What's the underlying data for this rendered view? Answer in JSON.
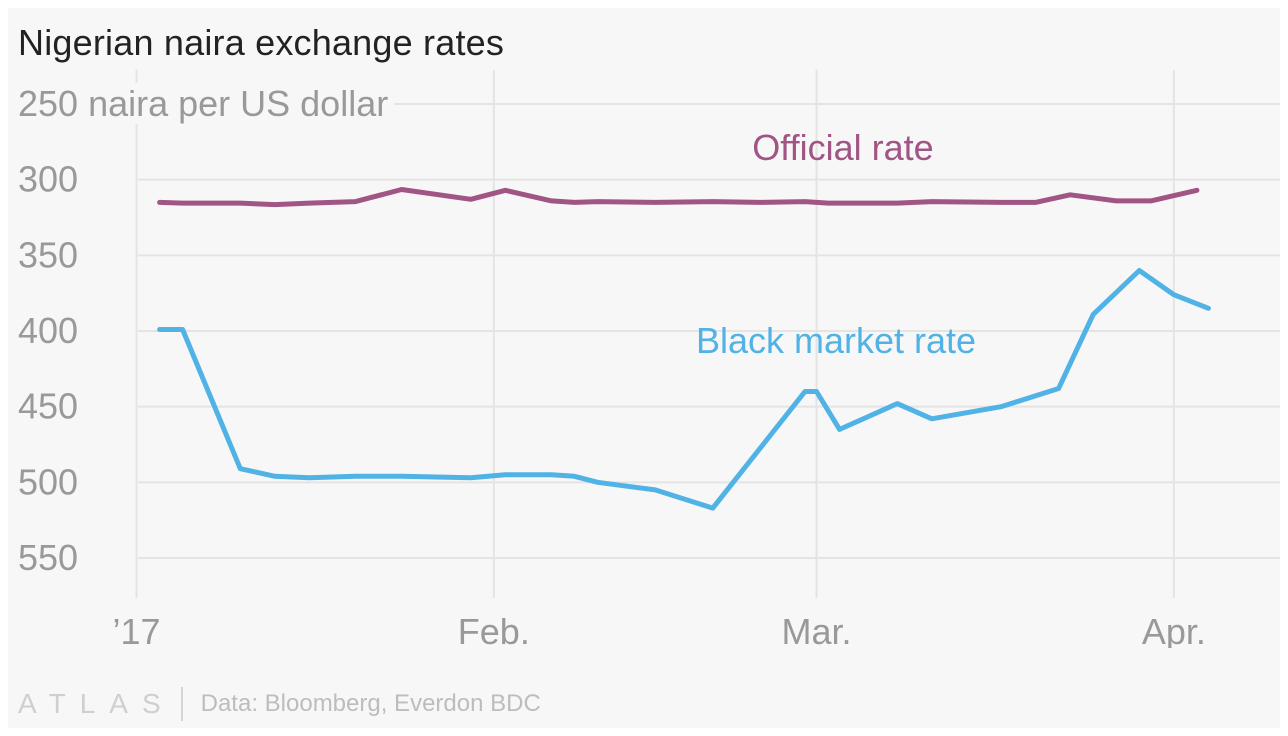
{
  "title": "Nigerian naira exchange rates",
  "footer": {
    "logo": "ATLAS",
    "source": "Data: Bloomberg, Everdon BDC"
  },
  "colors": {
    "official": "#a05584",
    "black_market": "#51b2e5",
    "grid": "#e4e4e4",
    "tick_text": "#999999"
  },
  "chart_data": {
    "type": "line",
    "title": "Nigerian naira exchange rates",
    "ylabel": "naira per US dollar",
    "ylim": [
      250,
      550
    ],
    "y_inverted": true,
    "yticks": [
      250,
      300,
      350,
      400,
      450,
      500,
      550
    ],
    "ytick_labels": [
      "250 naira per US dollar",
      "300",
      "350",
      "400",
      "450",
      "500",
      "550"
    ],
    "xlim": [
      "2016-12-31",
      "2017-04-07"
    ],
    "xticks": [
      "2017-01-01",
      "2017-02-01",
      "2017-03-01",
      "2017-04-01"
    ],
    "xtick_labels": [
      "’17",
      "Feb.",
      "Mar.",
      "Apr."
    ],
    "grid": true,
    "series": [
      {
        "name": "Official rate",
        "color": "#a05584",
        "points": [
          [
            "2017-01-03",
            315
          ],
          [
            "2017-01-05",
            315.5
          ],
          [
            "2017-01-10",
            315.5
          ],
          [
            "2017-01-13",
            316.5
          ],
          [
            "2017-01-16",
            315.5
          ],
          [
            "2017-01-20",
            314.5
          ],
          [
            "2017-01-24",
            306.5
          ],
          [
            "2017-01-30",
            313
          ],
          [
            "2017-02-02",
            307
          ],
          [
            "2017-02-06",
            314
          ],
          [
            "2017-02-08",
            315
          ],
          [
            "2017-02-10",
            314.5
          ],
          [
            "2017-02-15",
            315
          ],
          [
            "2017-02-20",
            314.5
          ],
          [
            "2017-02-24",
            315
          ],
          [
            "2017-02-28",
            314.5
          ],
          [
            "2017-03-02",
            315.5
          ],
          [
            "2017-03-08",
            315.5
          ],
          [
            "2017-03-11",
            314.5
          ],
          [
            "2017-03-17",
            315
          ],
          [
            "2017-03-20",
            315
          ],
          [
            "2017-03-23",
            310
          ],
          [
            "2017-03-27",
            314
          ],
          [
            "2017-03-30",
            314
          ],
          [
            "2017-04-03",
            307
          ]
        ]
      },
      {
        "name": "Black market rate",
        "color": "#51b2e5",
        "points": [
          [
            "2017-01-03",
            399
          ],
          [
            "2017-01-05",
            399
          ],
          [
            "2017-01-10",
            491
          ],
          [
            "2017-01-13",
            496
          ],
          [
            "2017-01-16",
            497
          ],
          [
            "2017-01-20",
            496
          ],
          [
            "2017-01-24",
            496
          ],
          [
            "2017-01-30",
            497
          ],
          [
            "2017-02-02",
            495
          ],
          [
            "2017-02-06",
            495
          ],
          [
            "2017-02-08",
            496
          ],
          [
            "2017-02-10",
            500
          ],
          [
            "2017-02-15",
            505
          ],
          [
            "2017-02-20",
            517
          ],
          [
            "2017-02-28",
            440
          ],
          [
            "2017-03-01",
            440
          ],
          [
            "2017-03-03",
            465
          ],
          [
            "2017-03-08",
            448
          ],
          [
            "2017-03-11",
            458
          ],
          [
            "2017-03-17",
            450
          ],
          [
            "2017-03-22",
            438
          ],
          [
            "2017-03-25",
            389
          ],
          [
            "2017-03-29",
            360
          ],
          [
            "2017-04-01",
            376
          ],
          [
            "2017-04-04",
            385
          ]
        ]
      }
    ],
    "annotations": [
      {
        "text": "Official rate",
        "series": "Official rate"
      },
      {
        "text": "Black market rate",
        "series": "Black market rate"
      }
    ]
  }
}
